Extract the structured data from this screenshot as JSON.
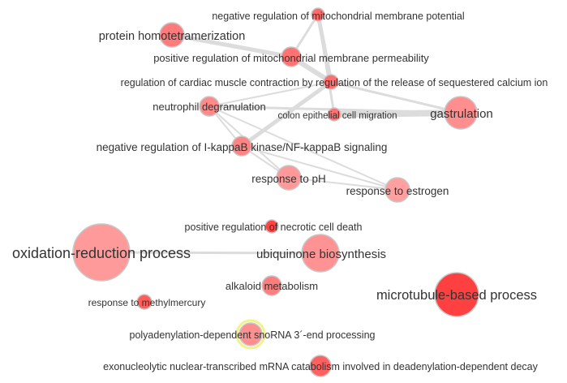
{
  "colors": {
    "edge": "#dcdcdc",
    "node_stroke": "#c8c8c8",
    "highlight_stroke": "#f2f28a",
    "label": "#333333"
  },
  "nodes": [
    {
      "id": "n1",
      "label": "negative regulation of mitochondrial membrane potential",
      "fill": "#ff6b6b"
    },
    {
      "id": "n2",
      "label": "protein homotetramerization",
      "fill": "#ff7b7b"
    },
    {
      "id": "n3",
      "label": "positive regulation of mitochondrial membrane permeability",
      "fill": "#ff7373"
    },
    {
      "id": "n4",
      "label": "regulation of cardiac muscle contraction by regulation of the release of sequestered calcium ion",
      "fill": "#ff6d6d"
    },
    {
      "id": "n5",
      "label": "neutrophil degranulation",
      "fill": "#ff8a8a"
    },
    {
      "id": "n6",
      "label": "colon epithelial cell migration",
      "fill": "#ff7070"
    },
    {
      "id": "n7",
      "label": "gastrulation",
      "fill": "#ff8e8e"
    },
    {
      "id": "n8",
      "label": "negative regulation of I-kappaB kinase/NF-kappaB signaling",
      "fill": "#ff8585"
    },
    {
      "id": "n9",
      "label": "response to pH",
      "fill": "#ff9999"
    },
    {
      "id": "n10",
      "label": "response to estrogen",
      "fill": "#ffa0a0"
    },
    {
      "id": "n11",
      "label": "positive regulation of necrotic cell death",
      "fill": "#ff4444"
    },
    {
      "id": "n12",
      "label": "oxidation-reduction process",
      "fill": "#ff9a9a"
    },
    {
      "id": "n13",
      "label": "ubiquinone biosynthesis",
      "fill": "#ff9393"
    },
    {
      "id": "n14",
      "label": "alkaloid metabolism",
      "fill": "#ff7d7d"
    },
    {
      "id": "n15",
      "label": "microtubule-based process",
      "fill": "#ff4040"
    },
    {
      "id": "n16",
      "label": "response to methylmercury",
      "fill": "#ff5c5c"
    },
    {
      "id": "n17",
      "label": "polyadenylation-dependent snoRNA 3´-end processing",
      "fill": "#ff8f8f",
      "highlighted": true
    },
    {
      "id": "n18",
      "label": "exonucleolytic nuclear-transcribed mRNA catabolism involved in deadenylation-dependent decay",
      "fill": "#ff6060"
    }
  ],
  "edges": [
    {
      "source": "n1",
      "target": "n3",
      "weight": 3
    },
    {
      "source": "n1",
      "target": "n4",
      "weight": 5
    },
    {
      "source": "n1",
      "target": "n6",
      "weight": 3
    },
    {
      "source": "n2",
      "target": "n3",
      "weight": 5
    },
    {
      "source": "n3",
      "target": "n4",
      "weight": 6
    },
    {
      "source": "n4",
      "target": "n7",
      "weight": 3
    },
    {
      "source": "n4",
      "target": "n8",
      "weight": 5
    },
    {
      "source": "n4",
      "target": "n5",
      "weight": 2
    },
    {
      "source": "n5",
      "target": "n7",
      "weight": 3
    },
    {
      "source": "n5",
      "target": "n8",
      "weight": 2
    },
    {
      "source": "n5",
      "target": "n9",
      "weight": 2
    },
    {
      "source": "n5",
      "target": "n10",
      "weight": 2
    },
    {
      "source": "n6",
      "target": "n7",
      "weight": 8
    },
    {
      "source": "n8",
      "target": "n10",
      "weight": 2
    },
    {
      "source": "n8",
      "target": "n9",
      "weight": 2
    },
    {
      "source": "n9",
      "target": "n10",
      "weight": 2
    },
    {
      "source": "n12",
      "target": "n13",
      "weight": 3
    }
  ]
}
